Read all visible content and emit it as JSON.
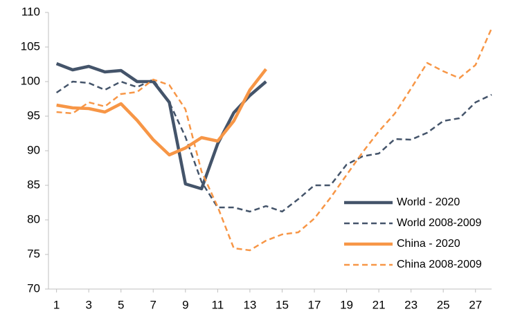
{
  "chart_data": {
    "type": "line",
    "x": [
      1,
      2,
      3,
      4,
      5,
      6,
      7,
      8,
      9,
      10,
      11,
      12,
      13,
      14,
      15,
      16,
      17,
      18,
      19,
      20,
      21,
      22,
      23,
      24,
      25,
      26,
      27,
      28
    ],
    "xlim": [
      0.5,
      28
    ],
    "xticks": [
      1,
      3,
      5,
      7,
      9,
      11,
      13,
      15,
      17,
      19,
      21,
      23,
      25,
      27
    ],
    "ylim": [
      70,
      110
    ],
    "yticks": [
      70,
      75,
      80,
      85,
      90,
      95,
      100,
      105,
      110
    ],
    "grid": false,
    "legend": "right",
    "series": [
      {
        "name": "World - 2020",
        "color": "#44546a",
        "dashed": false,
        "values": [
          102.6,
          101.7,
          102.2,
          101.4,
          101.6,
          100,
          100,
          97,
          85.2,
          84.5,
          91,
          95.5,
          98,
          100,
          null,
          null,
          null,
          null,
          null,
          null,
          null,
          null,
          null,
          null,
          null,
          null,
          null,
          null
        ]
      },
      {
        "name": "World 2008-2009",
        "color": "#44546a",
        "dashed": true,
        "values": [
          98.4,
          100,
          99.8,
          98.8,
          100,
          99.2,
          100.3,
          97,
          92,
          85.5,
          81.8,
          81.8,
          81.2,
          82,
          81.2,
          83,
          85,
          85,
          88,
          89.2,
          89.6,
          91.7,
          91.6,
          92.6,
          94.3,
          94.7,
          97,
          98.1
        ]
      },
      {
        "name": "China - 2020",
        "color": "#f79646",
        "dashed": false,
        "values": [
          96.6,
          96.2,
          96.1,
          95.6,
          96.8,
          94.4,
          91.6,
          89.4,
          90.4,
          91.9,
          91.4,
          94.3,
          98.8,
          101.8,
          null,
          null,
          null,
          null,
          null,
          null,
          null,
          null,
          null,
          null,
          null,
          null,
          null,
          null
        ]
      },
      {
        "name": "China 2008-2009",
        "color": "#f79646",
        "dashed": true,
        "values": [
          95.6,
          95.4,
          97,
          96.4,
          98.2,
          98.5,
          100.3,
          99.5,
          96,
          87,
          81.9,
          75.9,
          75.6,
          77,
          77.9,
          78.2,
          80.2,
          83.2,
          86.5,
          89.8,
          92.8,
          95.4,
          99,
          102.7,
          101.5,
          100.5,
          102.4,
          107.7
        ]
      }
    ]
  }
}
